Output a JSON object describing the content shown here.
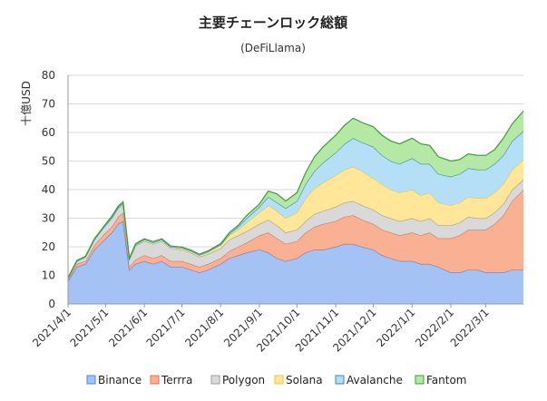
{
  "chart_data": {
    "type": "area",
    "stacked": true,
    "title": "主要チェーンロック総額",
    "subtitle": "(DeFiLlama)",
    "ylabel": "十億USD",
    "xlabel": "",
    "ylim": [
      0,
      80
    ],
    "yticks": [
      0,
      10,
      20,
      30,
      40,
      50,
      60,
      70,
      80
    ],
    "xlim": [
      "2021-04-01",
      "2022-03-31"
    ],
    "xtick_labels": [
      "2021/4/1",
      "2021/5/1",
      "2021/6/1",
      "2021/7/1",
      "2021/8/1",
      "2021/9/1",
      "2021/10/1",
      "2021/11/1",
      "2021/12/1",
      "2022/1/1",
      "2022/2/1",
      "2022/3/1"
    ],
    "xtick_dates": [
      "2021-04-01",
      "2021-05-01",
      "2021-06-01",
      "2021-07-01",
      "2021-08-01",
      "2021-09-01",
      "2021-10-01",
      "2021-11-01",
      "2021-12-01",
      "2022-01-01",
      "2022-02-01",
      "2022-03-01"
    ],
    "grid": "horizontal",
    "legend_position": "bottom",
    "x": [
      "2021-04-01",
      "2021-04-08",
      "2021-04-15",
      "2021-04-22",
      "2021-04-29",
      "2021-05-06",
      "2021-05-11",
      "2021-05-15",
      "2021-05-20",
      "2021-05-25",
      "2021-06-01",
      "2021-06-08",
      "2021-06-15",
      "2021-06-22",
      "2021-07-01",
      "2021-07-08",
      "2021-07-15",
      "2021-07-22",
      "2021-08-01",
      "2021-08-08",
      "2021-08-15",
      "2021-08-22",
      "2021-09-01",
      "2021-09-08",
      "2021-09-15",
      "2021-09-22",
      "2021-10-01",
      "2021-10-08",
      "2021-10-15",
      "2021-10-22",
      "2021-11-01",
      "2021-11-08",
      "2021-11-15",
      "2021-11-22",
      "2021-12-01",
      "2021-12-08",
      "2021-12-15",
      "2021-12-22",
      "2022-01-01",
      "2022-01-08",
      "2022-01-15",
      "2022-01-22",
      "2022-02-01",
      "2022-02-08",
      "2022-02-15",
      "2022-02-22",
      "2022-03-01",
      "2022-03-08",
      "2022-03-15",
      "2022-03-22",
      "2022-03-31"
    ],
    "series": [
      {
        "name": "Binance",
        "color": "#a4c2f4",
        "values": [
          8,
          13,
          14,
          19,
          22,
          25,
          28,
          29,
          12,
          14,
          15,
          14,
          15,
          13,
          13,
          12,
          11,
          12,
          14,
          16,
          17,
          18,
          19,
          18,
          16,
          15,
          16,
          18,
          19,
          19,
          20,
          21,
          21,
          20,
          19,
          17,
          16,
          15,
          15,
          14,
          14,
          13,
          11,
          11,
          12,
          12,
          11,
          11,
          11,
          12,
          12
        ]
      },
      {
        "name": "Terrra",
        "color": "#f9b093",
        "values": [
          0.5,
          1,
          1,
          1.5,
          2,
          2,
          2.5,
          3,
          1,
          1.5,
          2,
          2,
          2,
          2,
          2,
          2,
          2,
          2,
          2,
          2.5,
          3,
          3.5,
          5,
          7,
          7,
          6,
          6,
          7,
          8,
          9,
          9,
          9.5,
          10,
          9.5,
          9,
          9,
          9,
          9,
          10,
          10,
          11,
          10,
          12,
          13,
          14,
          14,
          15,
          17,
          20,
          24,
          28
        ]
      },
      {
        "name": "Polygon",
        "color": "#d9d9d9",
        "values": [
          0.5,
          1,
          1.5,
          2,
          2.5,
          3,
          3,
          3,
          2.5,
          5,
          5,
          5,
          5,
          4.5,
          4,
          4,
          3.5,
          3.5,
          3.5,
          4,
          4,
          4,
          4,
          4.5,
          4.5,
          4,
          4,
          4,
          4.5,
          4.5,
          5,
          5,
          5,
          5,
          5,
          5,
          5,
          5,
          5,
          5,
          5,
          4.5,
          4.5,
          4.5,
          4.5,
          4,
          4,
          4,
          4,
          4,
          3.5
        ]
      },
      {
        "name": "Solana",
        "color": "#ffe699",
        "values": [
          0,
          0,
          0,
          0,
          0,
          0.3,
          0.3,
          0.3,
          0.3,
          0.3,
          0.5,
          0.5,
          0.5,
          0.5,
          0.6,
          0.6,
          0.6,
          0.8,
          1,
          1.5,
          2,
          3,
          4,
          5,
          5,
          5,
          6,
          8,
          9,
          10,
          11,
          11.5,
          12,
          12,
          11,
          11,
          10,
          10,
          10,
          9,
          9,
          8,
          7,
          7,
          7,
          7,
          7,
          7,
          7,
          7,
          7
        ]
      },
      {
        "name": "Avalanche",
        "color": "#b4dff7",
        "values": [
          0,
          0,
          0,
          0,
          0,
          0,
          0,
          0,
          0,
          0,
          0,
          0,
          0,
          0,
          0,
          0,
          0,
          0,
          0.3,
          0.5,
          1,
          1.5,
          2,
          3,
          3,
          3.5,
          4,
          5,
          6,
          7,
          8,
          9,
          10,
          10,
          11,
          10,
          10,
          10,
          11,
          11,
          10,
          10,
          10,
          10,
          10,
          10,
          10,
          10,
          10,
          10,
          10
        ]
      },
      {
        "name": "Fantom",
        "color": "#b6e8a5",
        "values": [
          0.2,
          0.2,
          0.2,
          0.3,
          0.3,
          0.4,
          0.4,
          0.4,
          0.2,
          0.3,
          0.3,
          0.3,
          0.3,
          0.3,
          0.3,
          0.3,
          0.3,
          0.3,
          0.3,
          0.5,
          0.5,
          1,
          1,
          2,
          3,
          2.5,
          3,
          4,
          5,
          5.5,
          6,
          6.5,
          7,
          7,
          7,
          7,
          7,
          7,
          7,
          7,
          6.5,
          6,
          5.5,
          5,
          5,
          5,
          5,
          5,
          6,
          6,
          7
        ]
      }
    ]
  }
}
